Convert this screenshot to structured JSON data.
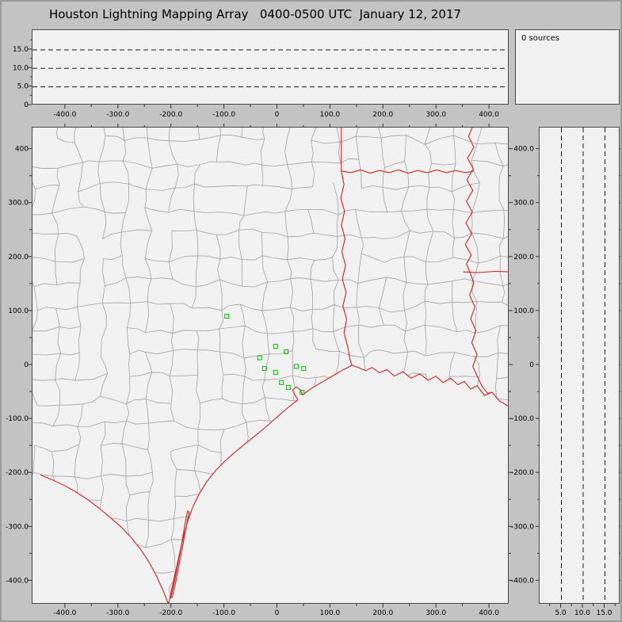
{
  "title": "Houston Lightning Mapping Array   0400-0500 UTC  January 12, 2017",
  "sources_label": "0 sources",
  "colors": {
    "window_bg": "#c3c3c3",
    "panel_bg": "#f1f1f1",
    "panel_border": "#4a4a4a",
    "county_line": "#a0a0a0",
    "state_line": "#cc2222",
    "station_marker": "#00bb00",
    "grid_dash": "#1a1a1a",
    "tick_color": "#333333",
    "label_text": "#000000"
  },
  "chart_data": [
    {
      "name": "time-height-panel",
      "type": "scatter",
      "description": "Source altitude (km) vs east-west distance (km); no lightning sources plotted this hour",
      "xlim": [
        -437,
        437
      ],
      "ylim": [
        0,
        19.8
      ],
      "x_tick_labels": [
        "-400.0",
        "-300.0",
        "-200.0",
        "-100.0",
        "0",
        "100.0",
        "200.0",
        "300.0",
        "400.0"
      ],
      "x_tick_values": [
        -400,
        -300,
        -200,
        -100,
        0,
        100,
        200,
        300,
        400
      ],
      "y_tick_labels": [
        "15.0",
        "10.0",
        "5.0",
        "0"
      ],
      "y_tick_values": [
        15,
        10,
        5,
        0
      ],
      "dashed_gridlines_y": [
        5,
        10,
        15
      ],
      "points": []
    },
    {
      "name": "plan-view-map",
      "type": "scatter",
      "description": "Plan view map (km east-west vs km north-south) centered near Houston; green squares are LMA stations; no lightning sources plotted",
      "xlim": [
        -437,
        437
      ],
      "ylim": [
        -437,
        437
      ],
      "x_tick_labels": [
        "-400.0",
        "-300.0",
        "-200.0",
        "-100.0",
        "0",
        "100.0",
        "200.0",
        "300.0",
        "400.0"
      ],
      "x_tick_values": [
        -400,
        -300,
        -200,
        -100,
        0,
        100,
        200,
        300,
        400
      ],
      "y_tick_labels": [
        "400",
        "300.0",
        "200.0",
        "100.0",
        "0",
        "-100.0",
        "-200.0",
        "-300.0",
        "-400.0"
      ],
      "y_tick_values": [
        400,
        300,
        200,
        100,
        0,
        -100,
        -200,
        -300,
        -400
      ],
      "stations": [
        {
          "x": -96,
          "y": 91
        },
        {
          "x": -4,
          "y": 35
        },
        {
          "x": 16,
          "y": 25
        },
        {
          "x": -34,
          "y": 14
        },
        {
          "x": -25,
          "y": -6
        },
        {
          "x": -4,
          "y": -13
        },
        {
          "x": 35,
          "y": -2
        },
        {
          "x": 49,
          "y": -6
        },
        {
          "x": 7,
          "y": -32
        },
        {
          "x": 20,
          "y": -41
        },
        {
          "x": 46,
          "y": -50
        }
      ],
      "sources": []
    },
    {
      "name": "altitude-ns-panel",
      "type": "scatter",
      "description": "Altitude (km) vs north-south distance (km); no lightning sources plotted this hour",
      "xlim": [
        0,
        18.5
      ],
      "ylim": [
        -437,
        437
      ],
      "x_tick_labels": [
        "5.0",
        "10.0",
        "15.0"
      ],
      "x_tick_values": [
        5,
        10,
        15
      ],
      "y_tick_labels": [
        "400.0",
        "300.0",
        "200.0",
        "100.0",
        "0",
        "-100.0",
        "-200.0",
        "-300.0",
        "-400.0"
      ],
      "y_tick_values": [
        400,
        300,
        200,
        100,
        0,
        -100,
        -200,
        -300,
        -400
      ],
      "dashed_gridlines_x": [
        5,
        10,
        15
      ],
      "points": []
    }
  ]
}
